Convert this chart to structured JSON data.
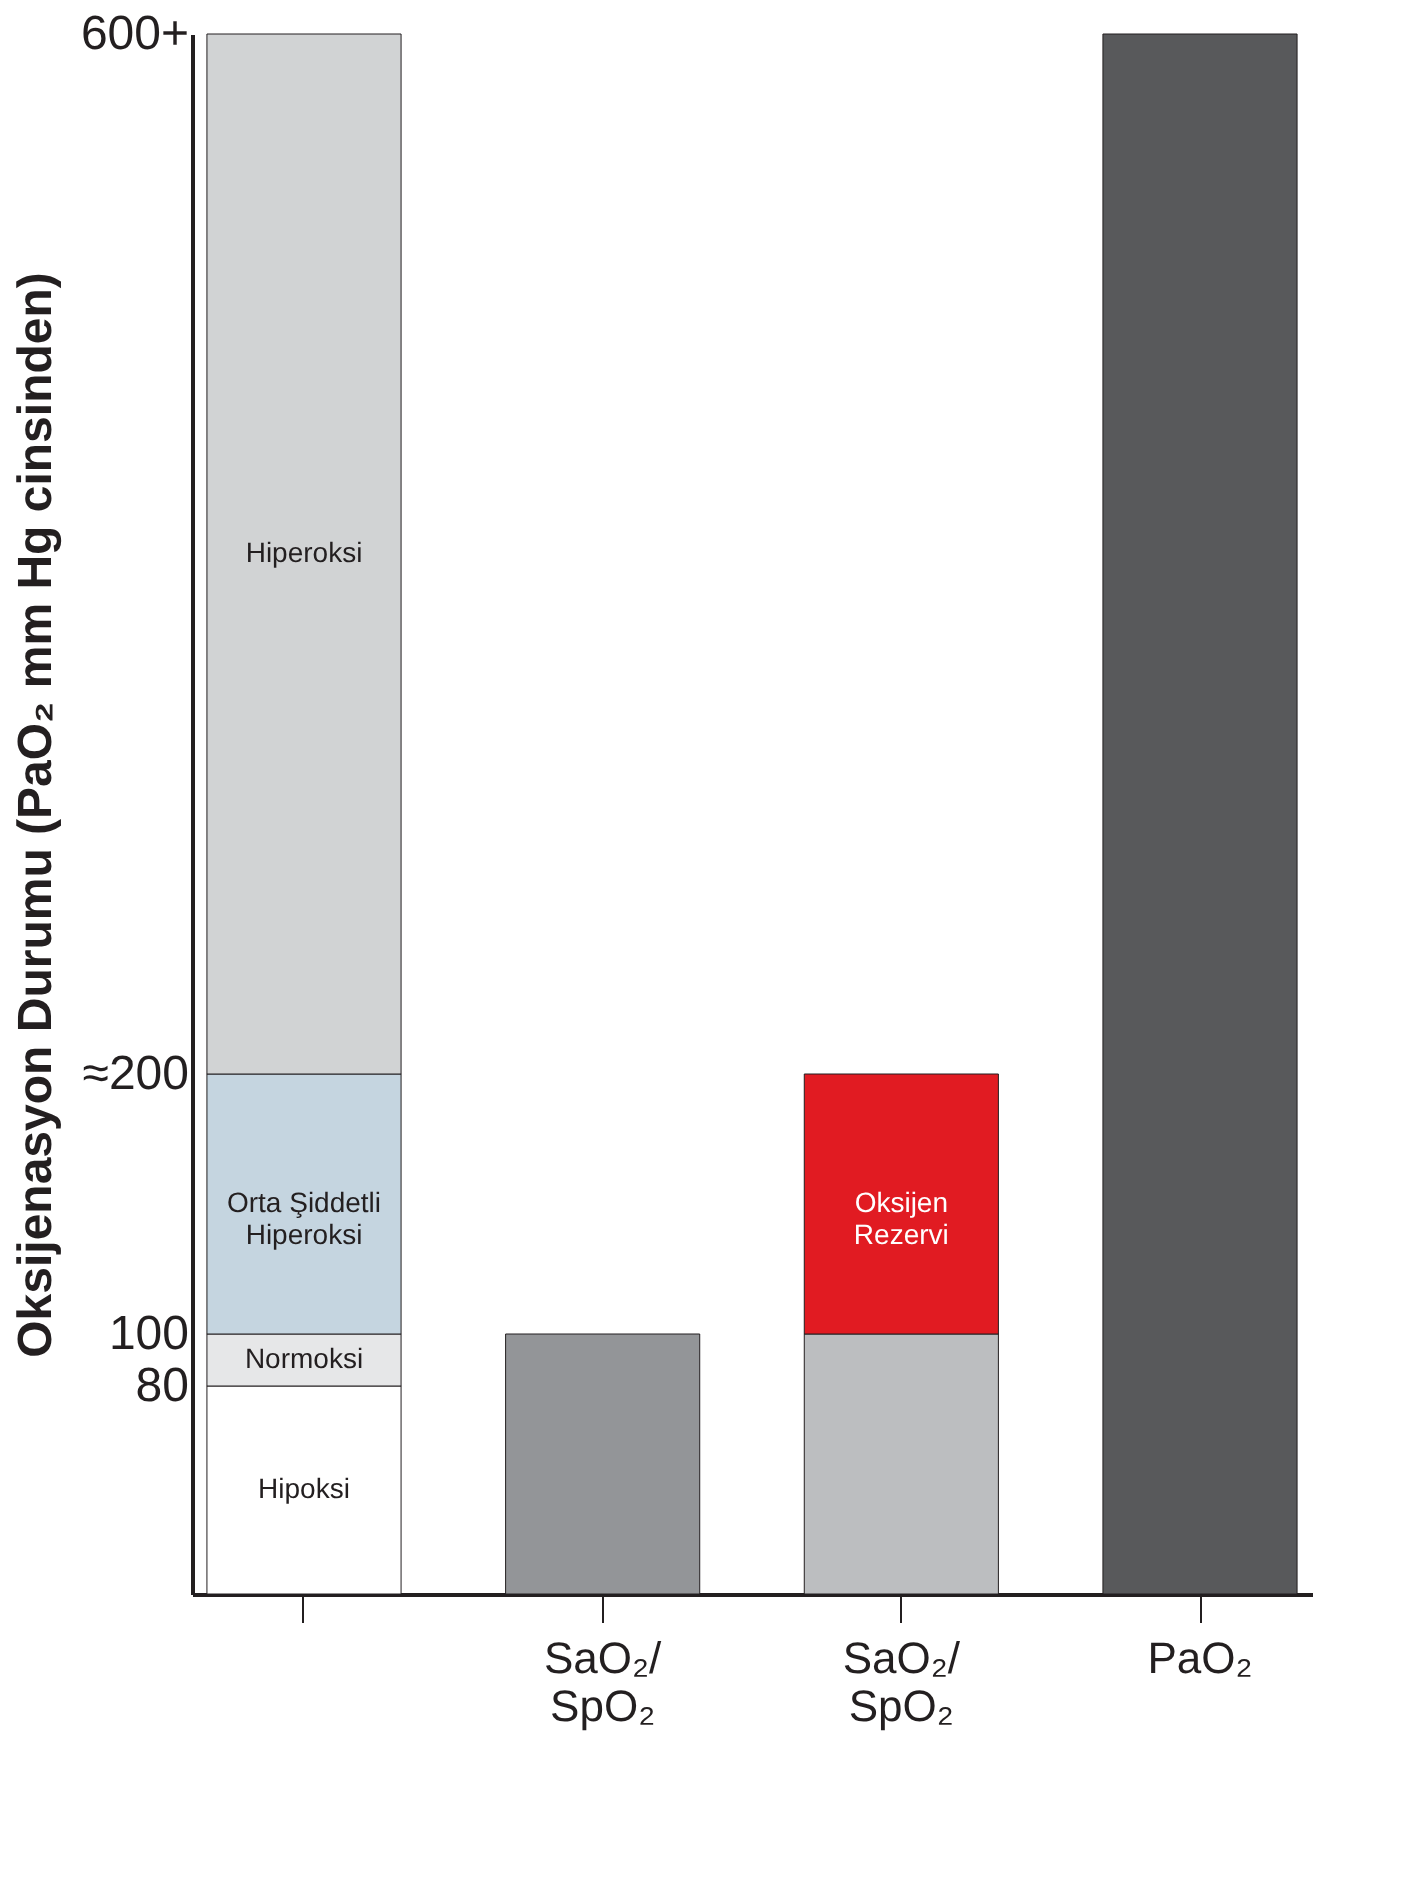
{
  "chart_data": {
    "type": "bar",
    "stacked": true,
    "ylabel": "Oksijenasyon Durumu (PaO₂ mm Hg cinsinden)",
    "categories": [
      null,
      "SaO₂/SpO₂",
      "SaO₂/SpO₂",
      "PaO₂"
    ],
    "series": [
      {
        "name": "Hipoksi",
        "color": "#ffffff",
        "values": [
          80,
          null,
          null,
          null
        ]
      },
      {
        "name": "Normoksi",
        "color": "#e6e7e8",
        "values": [
          20,
          null,
          null,
          null
        ]
      },
      {
        "name": "Orta Şiddetli Hiperoksi",
        "color": "#c5d5e0",
        "values": [
          100,
          null,
          null,
          null
        ]
      },
      {
        "name": "Hiperoksi",
        "color": "#d1d3d4",
        "values": [
          400,
          null,
          null,
          null
        ]
      },
      {
        "color": "#939598",
        "values": [
          null,
          100,
          null,
          null
        ]
      },
      {
        "color": "#bcbec0",
        "values": [
          null,
          null,
          100,
          null
        ]
      },
      {
        "name": "Oksijen Rezervi",
        "color": "#e11b22",
        "values": [
          null,
          null,
          100,
          null
        ]
      },
      {
        "color": "#58595b",
        "values": [
          null,
          null,
          null,
          600
        ]
      }
    ],
    "ylim": [
      0,
      600
    ],
    "yticks": [
      {
        "value": 80,
        "label": "80"
      },
      {
        "value": 100,
        "label": "100"
      },
      {
        "value": 200,
        "label": "≈200"
      },
      {
        "value": 600,
        "label": "600+"
      }
    ],
    "tick_labels": true
  }
}
